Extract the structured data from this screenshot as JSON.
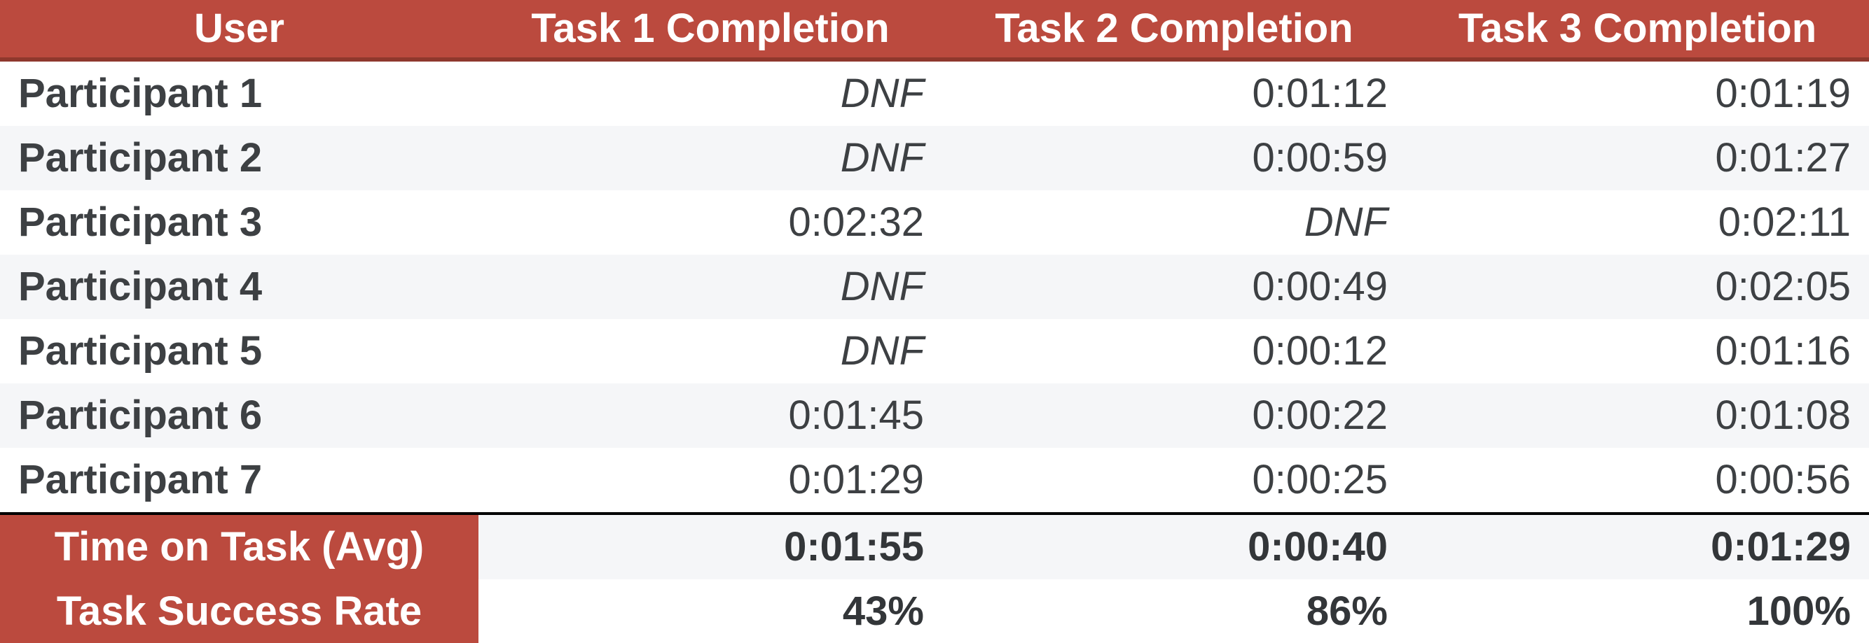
{
  "colors": {
    "header_bg": "#bb4a3e",
    "header_border": "#8f382d",
    "header_text": "#ffffff",
    "alt_row_bg": "#f5f6f8",
    "divider": "#000000",
    "body_text": "#3d4043",
    "summary_text": "#333639"
  },
  "chart_data": {
    "type": "table",
    "columns": [
      "User",
      "Task 1 Completion",
      "Task 2 Completion",
      "Task 3 Completion"
    ],
    "rows": [
      [
        "Participant 1",
        "DNF",
        "0:01:12",
        "0:01:19"
      ],
      [
        "Participant 2",
        "DNF",
        "0:00:59",
        "0:01:27"
      ],
      [
        "Participant 3",
        "0:02:32",
        "DNF",
        "0:02:11"
      ],
      [
        "Participant 4",
        "DNF",
        "0:00:49",
        "0:02:05"
      ],
      [
        "Participant 5",
        "DNF",
        "0:00:12",
        "0:01:16"
      ],
      [
        "Participant 6",
        "0:01:45",
        "0:00:22",
        "0:01:08"
      ],
      [
        "Participant 7",
        "0:01:29",
        "0:00:25",
        "0:00:56"
      ],
      [
        "Time on Task (Avg)",
        "0:01:55",
        "0:00:40",
        "0:01:29"
      ],
      [
        "Task Success Rate",
        "43%",
        "86%",
        "100%"
      ]
    ],
    "layout": {
      "summary_rows": [
        7,
        8
      ],
      "value_alignment": "right",
      "striped": true
    }
  }
}
